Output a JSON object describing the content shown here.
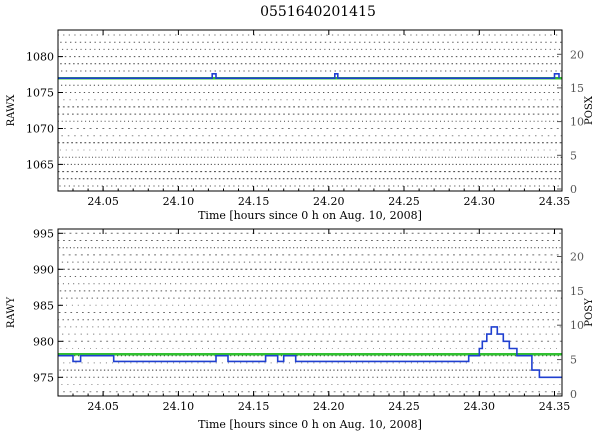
{
  "title": "0551640201415",
  "colors": {
    "axis": "#000000",
    "right_axis": "#555555",
    "events": "#000000",
    "raw_track": "#2040d0",
    "pos_track": "#30c030"
  },
  "chart_data": [
    {
      "type": "line",
      "xlabel": "Time [hours since 0 h on Aug. 10, 2008]",
      "ylabel_left": "RAWX",
      "ylabel_right": "POSX",
      "xlim": [
        24.02,
        24.355
      ],
      "ylim_left": [
        1061.3,
        1083.7
      ],
      "ylim_right": [
        -0.3,
        23.6
      ],
      "xticks": [
        "24.05",
        "24.10",
        "24.15",
        "24.20",
        "24.25",
        "24.30",
        "24.35"
      ],
      "yticks_left": [
        "1065",
        "1070",
        "1075",
        "1080"
      ],
      "yticks_right": [
        "0",
        "5",
        "10",
        "15",
        "20"
      ],
      "event_rows": [
        1062,
        1063,
        1064,
        1065,
        1066,
        1067,
        1068,
        1069,
        1070,
        1071,
        1072,
        1073,
        1074,
        1075,
        1076,
        1077,
        1078,
        1079,
        1080,
        1081,
        1082,
        1083
      ],
      "series": [
        {
          "x": [
            24.02,
            24.1225,
            24.1225,
            24.125,
            24.125,
            24.204,
            24.204,
            24.206,
            24.206,
            24.35,
            24.35,
            24.353,
            24.353
          ],
          "y": [
            1077,
            1077,
            1077.6,
            1077.6,
            1077,
            1077,
            1077.6,
            1077.6,
            1077,
            1077,
            1077.6,
            1077.6,
            1077
          ]
        },
        {
          "x": [
            24.02,
            24.355
          ],
          "y": [
            1077,
            1077
          ]
        }
      ]
    },
    {
      "type": "line",
      "xlabel": "Time [hours since 0 h on Aug. 10, 2008]",
      "ylabel_left": "RAWY",
      "ylabel_right": "POSY",
      "xlim": [
        24.02,
        24.355
      ],
      "ylim_left": [
        972.4,
        995.6
      ],
      "ylim_right": [
        -0.3,
        24.0
      ],
      "xticks": [
        "24.05",
        "24.10",
        "24.15",
        "24.20",
        "24.25",
        "24.30",
        "24.35"
      ],
      "yticks_left": [
        "975",
        "980",
        "985",
        "990",
        "995"
      ],
      "yticks_right": [
        "0",
        "5",
        "10",
        "15",
        "20"
      ],
      "event_rows": [
        973,
        974,
        975,
        976,
        977,
        978,
        979,
        980,
        981,
        982,
        983,
        984,
        985,
        986,
        987,
        988,
        989,
        990,
        991,
        992,
        993,
        994,
        995
      ],
      "series": [
        {
          "x": [
            24.02,
            24.03,
            24.03,
            24.035,
            24.035,
            24.057,
            24.057,
            24.125,
            24.125,
            24.133,
            24.133,
            24.158,
            24.158,
            24.166,
            24.166,
            24.17,
            24.17,
            24.178,
            24.178,
            24.293,
            24.293,
            24.3,
            24.3,
            24.302,
            24.302,
            24.305,
            24.305,
            24.308,
            24.308,
            24.312,
            24.312,
            24.316,
            24.316,
            24.32,
            24.32,
            24.325,
            24.325,
            24.335,
            24.335,
            24.34,
            24.34,
            24.355
          ],
          "y": [
            978,
            978,
            977.2,
            977.2,
            978,
            978,
            977.2,
            977.2,
            978,
            978,
            977.2,
            977.2,
            978,
            978,
            977.2,
            977.2,
            978,
            978,
            977.2,
            977.2,
            978,
            978,
            979,
            979,
            980,
            980,
            981,
            981,
            982,
            982,
            981,
            981,
            980,
            980,
            979,
            979,
            978,
            978,
            976,
            976,
            975,
            975
          ]
        },
        {
          "x": [
            24.02,
            24.355
          ],
          "y": [
            978.2,
            978.2
          ]
        }
      ]
    }
  ]
}
